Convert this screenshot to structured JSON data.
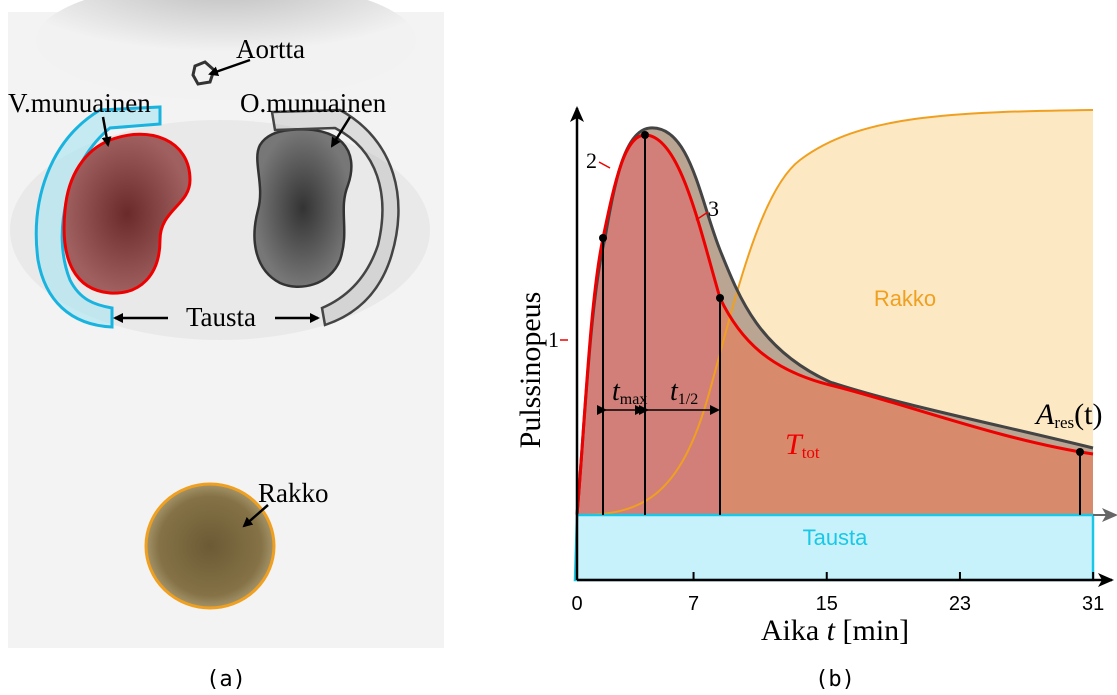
{
  "panel_a": {
    "caption": "(a)",
    "labels": {
      "aorta": "Aortta",
      "left_kidney": "V.munuainen",
      "right_kidney": "O.munuainen",
      "background": "Tausta",
      "bladder": "Rakko"
    }
  },
  "panel_b": {
    "caption": "(b)",
    "y_label": "Pulssinopeus",
    "x_label": {
      "prefix": "Aika",
      "variable": "t",
      "unit": "[min]"
    },
    "x_ticks": [
      0,
      7,
      15,
      23,
      31
    ],
    "regions": {
      "bladder": "Rakko",
      "background": "Tausta"
    },
    "phase_labels": [
      "1",
      "2",
      "3"
    ],
    "t_max": {
      "symbol": "t",
      "subscript": "max"
    },
    "t_half": {
      "symbol": "t",
      "subscript": "1/2"
    },
    "total": {
      "symbol": "T",
      "subscript": "tot"
    },
    "residual": {
      "symbol": "A",
      "subscript": "res",
      "argument": "(t)"
    }
  }
}
